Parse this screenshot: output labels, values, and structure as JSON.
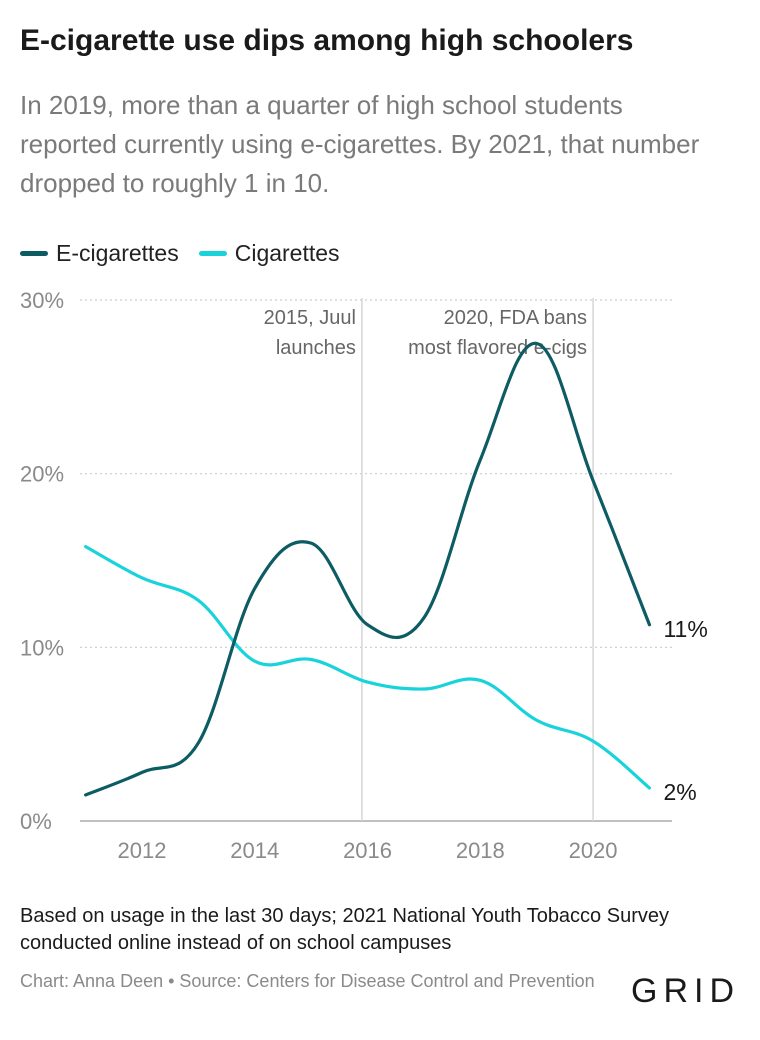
{
  "title": "E-cigarette use dips among high schoolers",
  "subtitle": "In 2019, more than a quarter of high school students reported currently using e-cigarettes. By 2021, that number dropped to roughly 1 in 10.",
  "note": "Based on usage in the last 30 days; 2021 National Youth Tobacco Survey conducted online instead of on school campuses",
  "credit": "Chart: Anna Deen • Source: Centers for Disease Control and Prevention",
  "logo": "GRID",
  "colors": {
    "ecig": "#0d5c63",
    "cig": "#19d3da",
    "grid": "#cccccc",
    "axis": "#8a8a8a"
  },
  "chart_data": {
    "type": "line",
    "x": [
      2011,
      2012,
      2013,
      2014,
      2015,
      2016,
      2017,
      2018,
      2019,
      2020,
      2021
    ],
    "series": [
      {
        "name": "E-cigarettes",
        "color": "#0d5c63",
        "values": [
          1.5,
          2.8,
          4.5,
          13.4,
          16.0,
          11.3,
          11.7,
          20.8,
          27.5,
          19.6,
          11.3
        ],
        "end_label": "11%"
      },
      {
        "name": "Cigarettes",
        "color": "#19d3da",
        "values": [
          15.8,
          14.0,
          12.7,
          9.2,
          9.3,
          8.0,
          7.6,
          8.1,
          5.8,
          4.6,
          1.9
        ],
        "end_label": "2%"
      }
    ],
    "xlim": [
      2010.9,
      2021.4
    ],
    "ylim": [
      0,
      30
    ],
    "yticks": [
      0,
      10,
      20,
      30
    ],
    "ytick_labels": [
      "0%",
      "10%",
      "20%",
      "30%"
    ],
    "xticks": [
      2012,
      2014,
      2016,
      2018,
      2020
    ],
    "xtick_labels": [
      "2012",
      "2014",
      "2016",
      "2018",
      "2020"
    ],
    "annotations": [
      {
        "x": 2015.9,
        "lines": [
          "2015, Juul",
          "launches"
        ]
      },
      {
        "x": 2020.0,
        "lines": [
          "2020, FDA bans",
          "most flavored e-cigs"
        ]
      }
    ],
    "grid": true,
    "legend": "top-left"
  }
}
